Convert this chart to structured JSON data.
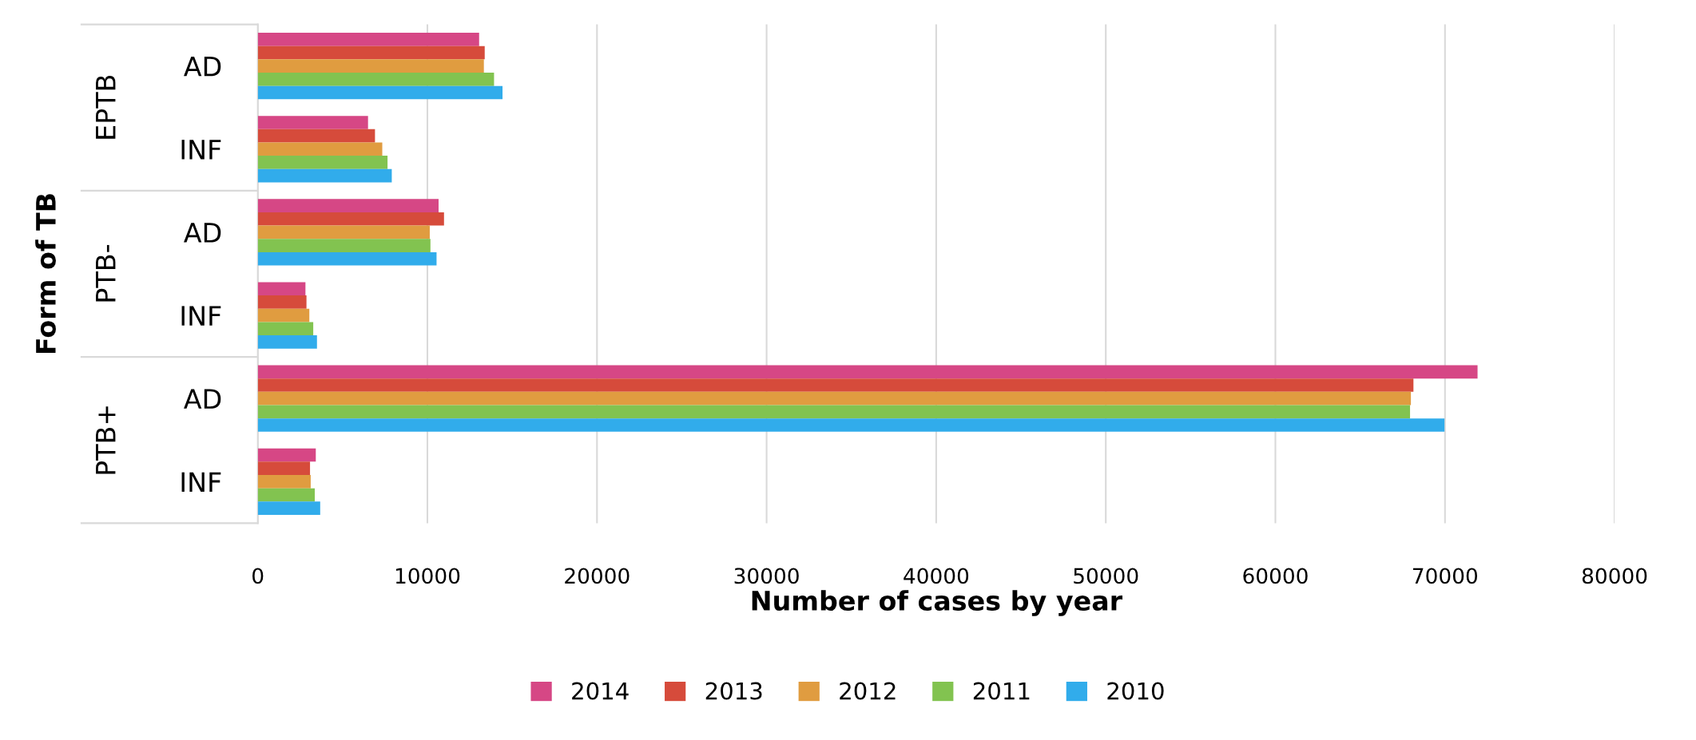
{
  "chart_data": {
    "type": "bar",
    "orientation": "horizontal",
    "xlabel": "Number of cases by year",
    "ylabel": "Form of TB",
    "categories": [
      "AD",
      "INF",
      "AD",
      "INF",
      "AD",
      "INF"
    ],
    "annotations": [
      "EPTB",
      "PTB-",
      "PTB+"
    ],
    "series": [
      {
        "name": "2014",
        "color": "#d64785",
        "values": [
          13050,
          6500,
          10660,
          2810,
          71920,
          3420
        ]
      },
      {
        "name": "2013",
        "color": "#d64b3b",
        "values": [
          13380,
          6910,
          10980,
          2870,
          68140,
          3080
        ]
      },
      {
        "name": "2012",
        "color": "#e09c40",
        "values": [
          13330,
          7340,
          10140,
          3040,
          67990,
          3120
        ]
      },
      {
        "name": "2011",
        "color": "#82c350",
        "values": [
          13930,
          7650,
          10180,
          3270,
          67940,
          3360
        ]
      },
      {
        "name": "2010",
        "color": "#31aceb",
        "values": [
          14430,
          7900,
          10540,
          3490,
          69970,
          3680
        ]
      }
    ],
    "xlim": [
      0,
      80000
    ],
    "xticks": [
      0,
      10000,
      20000,
      30000,
      40000,
      50000,
      60000,
      70000,
      80000
    ],
    "grid": "x",
    "legend": "bottom"
  }
}
